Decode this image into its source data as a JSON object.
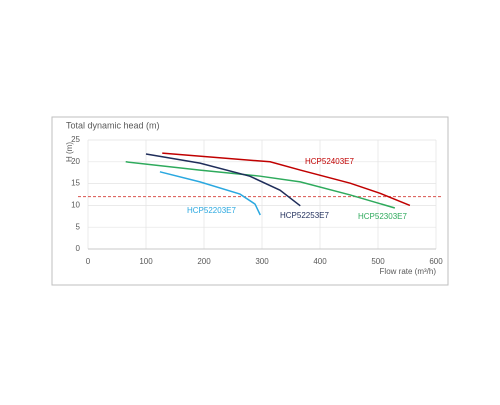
{
  "chart_data": {
    "type": "line",
    "title": "Total dynamic head (m)",
    "y_label": "H (m)",
    "x_label": "Flow rate (m³/h)",
    "xlim": [
      0,
      600
    ],
    "xticks": [
      0,
      100,
      200,
      300,
      400,
      500,
      600
    ],
    "ylim": [
      0,
      25
    ],
    "yticks": [
      0,
      5,
      10,
      15,
      20,
      25
    ],
    "grid": true,
    "reference_line": {
      "value": 12,
      "color": "#d9534f"
    },
    "series": [
      {
        "name": "HCP52403E7",
        "color": "#c00000",
        "x": [
          128,
          314,
          366,
          452,
          503,
          555
        ],
        "values": [
          22,
          20,
          18.1,
          15.1,
          12.8,
          10
        ]
      },
      {
        "name": "HCP52303E7",
        "color": "#2eaa5c",
        "x": [
          65,
          193,
          297,
          366,
          452,
          529
        ],
        "values": [
          20,
          18.1,
          16.7,
          15.4,
          12.4,
          9.4
        ]
      },
      {
        "name": "HCP52253E7",
        "color": "#1f2d5a",
        "x": [
          100,
          193,
          279,
          331,
          366
        ],
        "values": [
          21.8,
          19.7,
          16.7,
          13.5,
          9.9
        ]
      },
      {
        "name": "HCP52203E7",
        "color": "#2aa8e0",
        "x": [
          124,
          193,
          262,
          288,
          297
        ],
        "values": [
          17.7,
          15.4,
          12.6,
          10.3,
          7.8
        ]
      }
    ]
  }
}
